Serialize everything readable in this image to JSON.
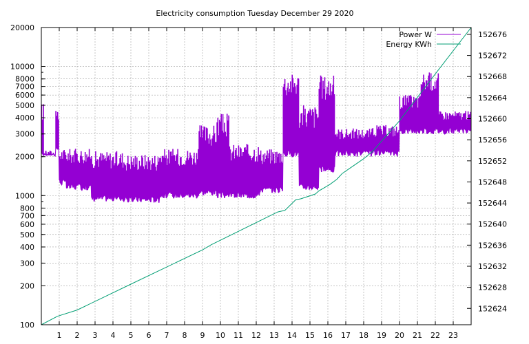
{
  "chart_data": {
    "type": "line",
    "title": "Electricity consumption Tuesday December 29 2020",
    "x_ticks": [
      "1",
      "2",
      "3",
      "4",
      "5",
      "6",
      "7",
      "8",
      "9",
      "10",
      "11",
      "12",
      "13",
      "14",
      "15",
      "16",
      "17",
      "18",
      "19",
      "20",
      "21",
      "22",
      "23"
    ],
    "xlim": [
      0,
      24
    ],
    "y_left": {
      "scale": "log",
      "lim": [
        100,
        20000
      ],
      "ticks": [
        {
          "v": 100,
          "label": "100"
        },
        {
          "v": 200,
          "label": "200"
        },
        {
          "v": 300,
          "label": "300"
        },
        {
          "v": 400,
          "label": "400"
        },
        {
          "v": 500,
          "label": "500"
        },
        {
          "v": 600,
          "label": "600"
        },
        {
          "v": 700,
          "label": "700"
        },
        {
          "v": 800,
          "label": "800"
        },
        {
          "v": 1000,
          "label": "1000"
        },
        {
          "v": 2000,
          "label": "2000"
        },
        {
          "v": 3000,
          "label": "3000"
        },
        {
          "v": 4000,
          "label": "4000"
        },
        {
          "v": 5000,
          "label": "5000"
        },
        {
          "v": 6000,
          "label": "6000"
        },
        {
          "v": 7000,
          "label": "7000"
        },
        {
          "v": 8000,
          "label": "8000"
        },
        {
          "v": 10000,
          "label": "10000"
        },
        {
          "v": 20000,
          "label": "20000"
        }
      ]
    },
    "y_right": {
      "scale": "linear",
      "lim": [
        152620.9,
        152677.3
      ],
      "ticks": [
        "152624",
        "152628",
        "152632",
        "152636",
        "152640",
        "152644",
        "152648",
        "152652",
        "152656",
        "152660",
        "152664",
        "152668",
        "152672",
        "152676"
      ]
    },
    "grid": true,
    "legend_position": "top-right",
    "colors": {
      "power": "#9400d3",
      "energy": "#009e73",
      "grid": "#a0a0a0",
      "axis": "#000000"
    },
    "series": [
      {
        "name": "Power W",
        "axis": "left",
        "note": "rapidly switching power draw",
        "segments": [
          {
            "from": 0.0,
            "to": 0.15,
            "low": 2000,
            "high": 5200
          },
          {
            "from": 0.15,
            "to": 0.8,
            "low": 2000,
            "high": 2100
          },
          {
            "from": 0.8,
            "to": 1.0,
            "low": 2200,
            "high": 4500
          },
          {
            "from": 1.0,
            "to": 1.4,
            "low": 1200,
            "high": 2300
          },
          {
            "from": 1.4,
            "to": 2.8,
            "low": 1100,
            "high": 2300
          },
          {
            "from": 2.8,
            "to": 4.6,
            "low": 900,
            "high": 2200
          },
          {
            "from": 4.6,
            "to": 6.6,
            "low": 880,
            "high": 2100
          },
          {
            "from": 6.6,
            "to": 8.8,
            "low": 950,
            "high": 2300
          },
          {
            "from": 8.8,
            "to": 9.8,
            "low": 1000,
            "high": 3500
          },
          {
            "from": 9.8,
            "to": 10.5,
            "low": 950,
            "high": 4300
          },
          {
            "from": 10.5,
            "to": 12.2,
            "low": 950,
            "high": 2500
          },
          {
            "from": 12.2,
            "to": 13.5,
            "low": 1050,
            "high": 2300
          },
          {
            "from": 13.5,
            "to": 14.4,
            "low": 2000,
            "high": 8800
          },
          {
            "from": 14.4,
            "to": 15.5,
            "low": 1100,
            "high": 5000
          },
          {
            "from": 15.5,
            "to": 16.4,
            "low": 1500,
            "high": 8500
          },
          {
            "from": 16.4,
            "to": 18.5,
            "low": 2000,
            "high": 3300
          },
          {
            "from": 18.5,
            "to": 20.0,
            "low": 2000,
            "high": 3500
          },
          {
            "from": 20.0,
            "to": 21.2,
            "low": 3000,
            "high": 6000
          },
          {
            "from": 21.2,
            "to": 22.2,
            "low": 3000,
            "high": 9000
          },
          {
            "from": 22.2,
            "to": 24.0,
            "low": 3000,
            "high": 4500
          }
        ]
      },
      {
        "name": "Energy KWh",
        "axis": "right",
        "points": [
          {
            "x": 0,
            "y": 152620.9
          },
          {
            "x": 0.9,
            "y": 152622.5
          },
          {
            "x": 2,
            "y": 152623.7
          },
          {
            "x": 5,
            "y": 152628.6
          },
          {
            "x": 9,
            "y": 152635.1
          },
          {
            "x": 9.5,
            "y": 152636.1
          },
          {
            "x": 13.2,
            "y": 152642.3
          },
          {
            "x": 13.6,
            "y": 152642.6
          },
          {
            "x": 14.2,
            "y": 152644.6
          },
          {
            "x": 14.5,
            "y": 152644.8
          },
          {
            "x": 15.3,
            "y": 152645.7
          },
          {
            "x": 15.5,
            "y": 152646.3
          },
          {
            "x": 16.1,
            "y": 152647.5
          },
          {
            "x": 16.5,
            "y": 152648.5
          },
          {
            "x": 16.8,
            "y": 152649.6
          },
          {
            "x": 18.0,
            "y": 152652.4
          },
          {
            "x": 18.5,
            "y": 152653.8
          },
          {
            "x": 20.0,
            "y": 152659.6
          },
          {
            "x": 22.0,
            "y": 152668.5
          },
          {
            "x": 24.0,
            "y": 152677.3
          }
        ]
      }
    ]
  }
}
